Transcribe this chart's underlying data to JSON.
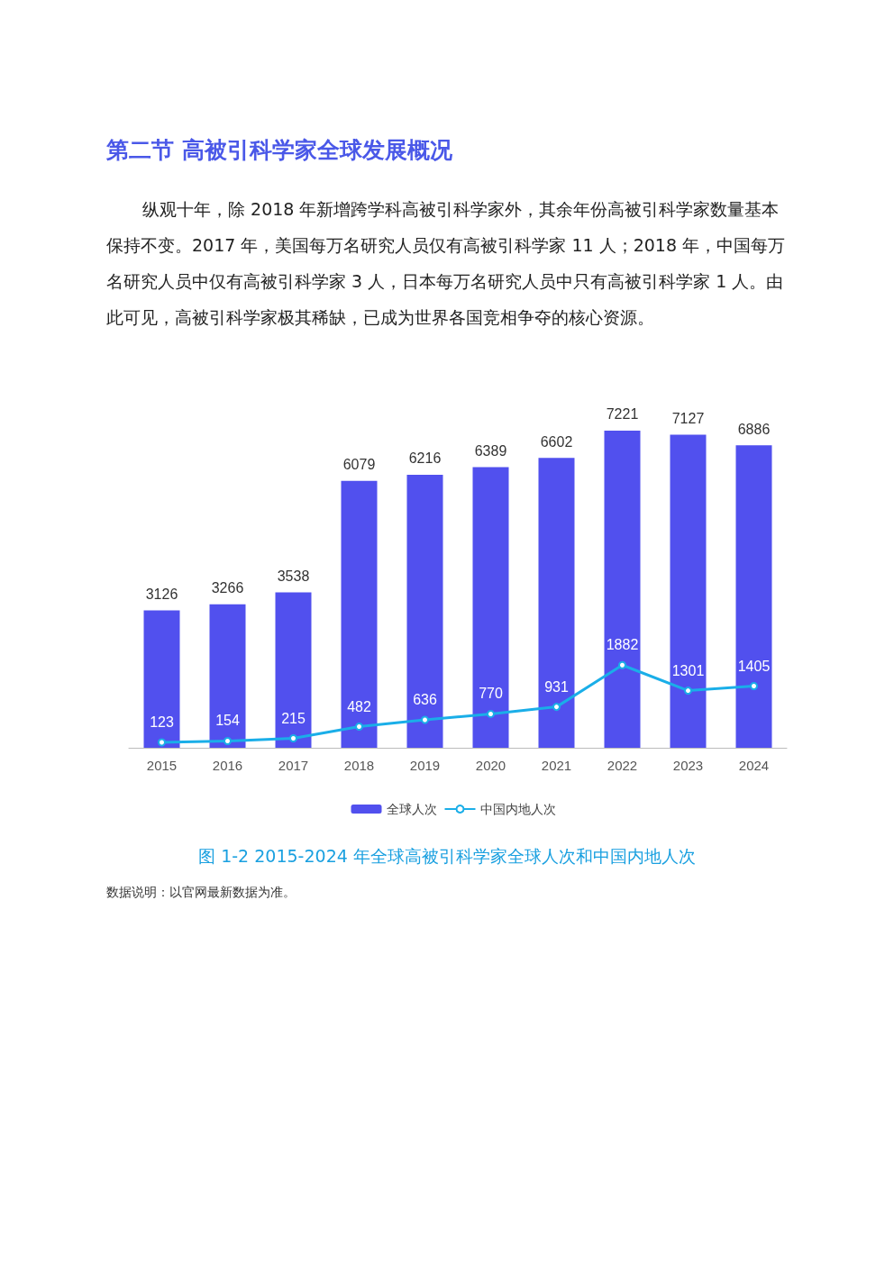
{
  "chart_data": {
    "type": "bar",
    "title": "第二节 高被引科学家全球发展概况",
    "subtitle": "纵观十年，除 2018 年新增跨学科高被引科学家外，其余年份高被引科学家数量基本保持不变。2017 年，美国每万名研究人员仅有高被引科学家 11 人；2018 年，中国每万名研究人员中仅有高被引科学家 3 人，日本每万名研究人员中只有高被引科学家 1 人。由此可见，高被引科学家极其稀缺，已成为世界各国竞相争夺的核心资源。",
    "categories": [
      "2015",
      "2016",
      "2017",
      "2018",
      "2019",
      "2020",
      "2021",
      "2022",
      "2023",
      "2024"
    ],
    "series": [
      {
        "name": "全球人次",
        "color": "#5150ee",
        "values": [
          3126,
          3266,
          3538,
          6079,
          6216,
          6389,
          6602,
          7221,
          7127,
          6886
        ]
      },
      {
        "name": "中国内地人次",
        "type": "line",
        "color": "#1aaee8",
        "values": [
          123,
          154,
          215,
          482,
          636,
          770,
          931,
          1882,
          1301,
          1405
        ]
      }
    ],
    "data_labels": true,
    "legend": "bottom",
    "marker": "circle",
    "line_style": "solid",
    "grid": false,
    "tick_labels": "x",
    "annotations": [
      "图 1-2 2015-2024 年全球高被引科学家全球人次和中国内地人次",
      "数据说明：以官网最新数据为准。"
    ]
  }
}
